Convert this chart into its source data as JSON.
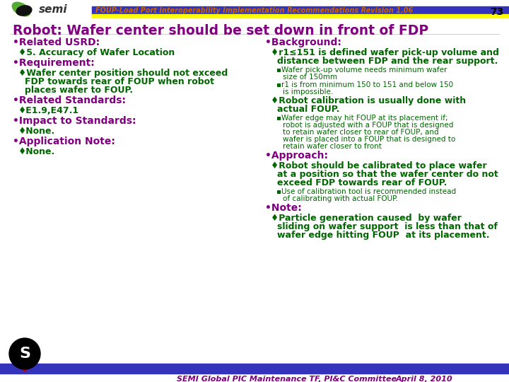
{
  "header_text": "FOUP-Load Port Interoperability Implementation Recommendations Revision 1.06",
  "page_num": "73",
  "title": "Robot: Wafer center should be set down in front of FDP",
  "footer_text": "SEMI Global PIC Maintenance TF, PI&C Committee",
  "footer_date": "April 8, 2010",
  "bg_color": "#FFFFFF",
  "header_bar_color": "#3333BB",
  "header_bar2_color": "#FFFF00",
  "title_color": "#800080",
  "header_text_color": "#CC6600",
  "h1_color": "#800080",
  "h2_color": "#006600",
  "h3_color": "#006600",
  "footer_bar_color": "#3333BB",
  "footer_text_color": "#800080",
  "left_col": [
    {
      "level": 1,
      "text": "Related USRD:"
    },
    {
      "level": 2,
      "text": "5. Accuracy of Wafer Location"
    },
    {
      "level": 1,
      "text": "Requirement:"
    },
    {
      "level": 2,
      "text": "Wafer center position should not exceed\nFDP towards rear of FOUP when robot\nplaces wafer to FOUP."
    },
    {
      "level": 1,
      "text": "Related Standards:"
    },
    {
      "level": 2,
      "text": "E1.9,E47.1"
    },
    {
      "level": 1,
      "text": "Impact to Standards:"
    },
    {
      "level": 2,
      "text": "None."
    },
    {
      "level": 1,
      "text": "Application Note:"
    },
    {
      "level": 2,
      "text": "None."
    }
  ],
  "right_col": [
    {
      "level": 1,
      "text": "Background:"
    },
    {
      "level": 2,
      "text": "r1≤151 is defined wafer pick-up volume and\ndistance between FDP and the rear support."
    },
    {
      "level": 3,
      "text": "Wafer pick-up volume needs minimum wafer\nsize of 150mm"
    },
    {
      "level": 3,
      "text": "r1 is from minimum 150 to 151 and below 150\nis impossible."
    },
    {
      "level": 2,
      "text": "Robot calibration is usually done with\nactual FOUP."
    },
    {
      "level": 3,
      "text": "Wafer edge may hit FOUP at its placement if;\nrobot is adjusted with a FOUP that is designed\nto retain wafer closer to rear of FOUP, and\nwafer is placed into a FOUP that is designed to\nretain wafer closer to front"
    },
    {
      "level": 1,
      "text": "Approach:"
    },
    {
      "level": 2,
      "text": "Robot should be calibrated to place wafer\nat a position so that the wafer center do not\nexceed FDP towards rear of FOUP."
    },
    {
      "level": 3,
      "text": "Use of calibration tool is recommended instead\nof calibrating with actual FOUP."
    },
    {
      "level": 1,
      "text": "Note:"
    },
    {
      "level": 2,
      "text": "Particle generation caused  by wafer\nsliding on wafer support  is less than that of\nwafer edge hitting FOUP  at its placement."
    }
  ]
}
